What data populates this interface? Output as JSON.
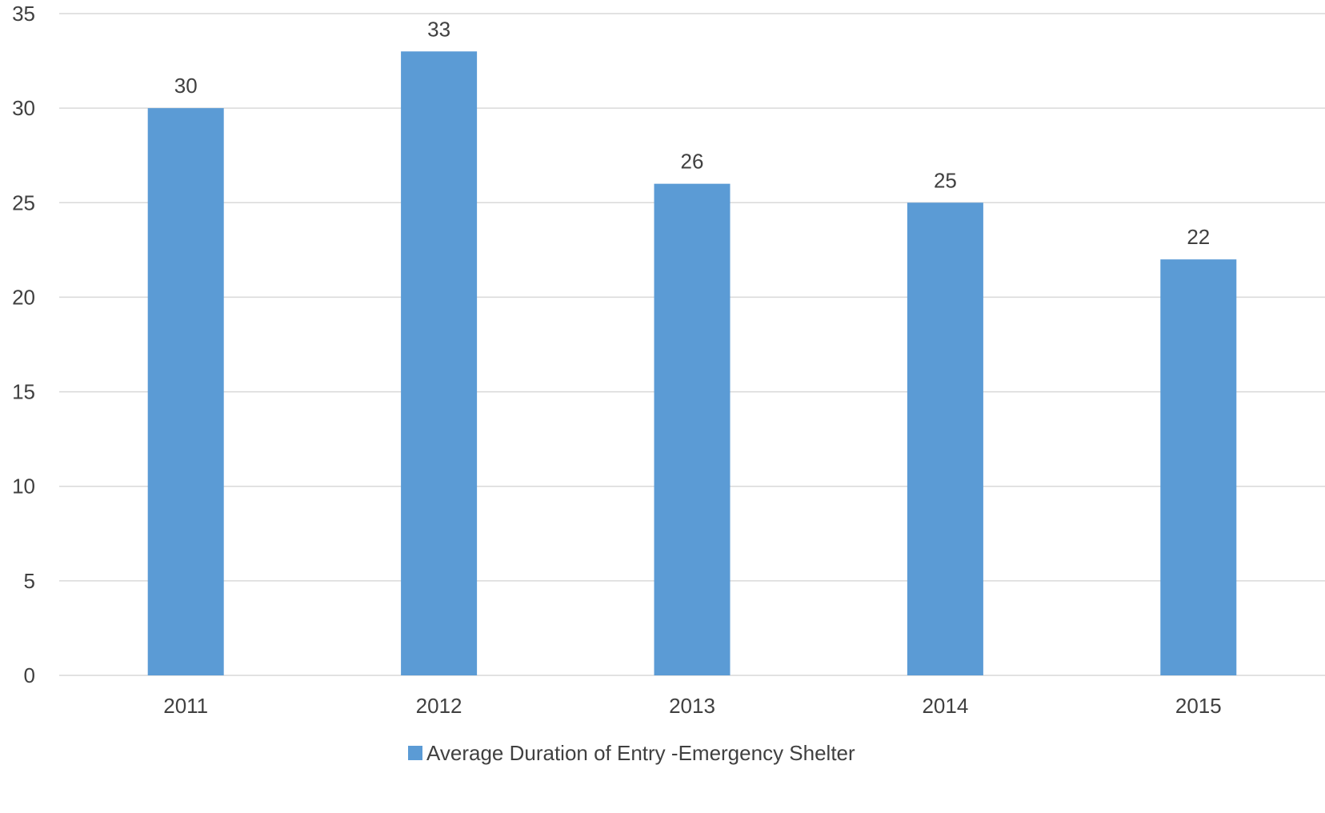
{
  "chart_data": {
    "type": "bar",
    "title": "",
    "xlabel": "",
    "ylabel": "",
    "categories": [
      "2011",
      "2012",
      "2013",
      "2014",
      "2015"
    ],
    "series": [
      {
        "name": "Average Duration of Entry -Emergency Shelter",
        "values": [
          30,
          33,
          26,
          25,
          22
        ],
        "color": "#5b9bd5"
      }
    ],
    "ylim": [
      0,
      35
    ],
    "yticks": [
      "0",
      "5",
      "10",
      "15",
      "20",
      "25",
      "30",
      "35"
    ],
    "grid": true,
    "data_labels": true,
    "legend_position": "bottom"
  }
}
